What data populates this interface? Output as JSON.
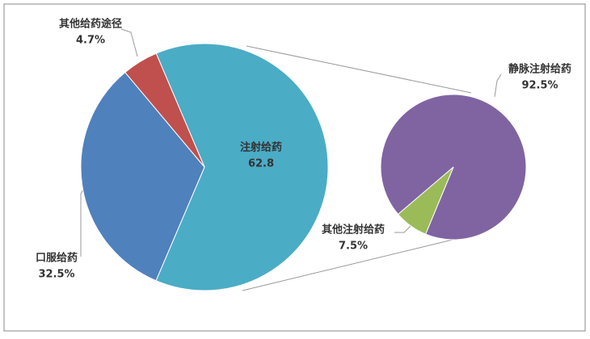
{
  "chart_data": [
    {
      "type": "pie",
      "categories": [
        "注射给药",
        "口服给药",
        "其他给药途径"
      ],
      "values": [
        62.8,
        32.5,
        4.7
      ],
      "value_labels": [
        "62.8",
        "32.5%",
        "4.7%"
      ],
      "colors": [
        "#4bacc6",
        "#4f81bd",
        "#c0504d"
      ]
    },
    {
      "type": "pie",
      "categories": [
        "静脉注射给药",
        "其他注射给药"
      ],
      "values": [
        92.5,
        7.5
      ],
      "value_labels": [
        "92.5%",
        "7.5%"
      ],
      "colors": [
        "#8064a2",
        "#9bbb59"
      ]
    }
  ]
}
